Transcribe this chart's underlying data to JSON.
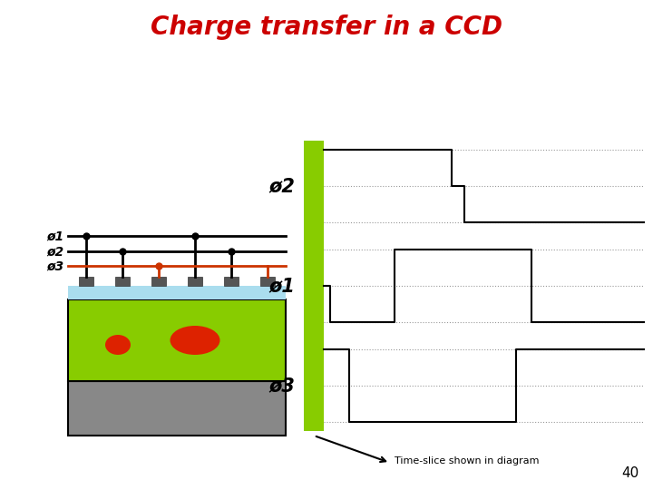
{
  "title": "Charge transfer in a CCD",
  "title_color": "#cc0000",
  "title_fontsize": 20,
  "bg_color": "#ffffff",
  "page_number": "40",
  "green_bar_color": "#88cc00",
  "waveform_color": "#000000",
  "dotted_color": "#999999",
  "comment_text": "Time-slice shown in diagram",
  "comment_fontsize": 8,
  "tick_label_fontsize": 6,
  "phi_label_fontsize": 15,
  "phi_label_italic": true
}
